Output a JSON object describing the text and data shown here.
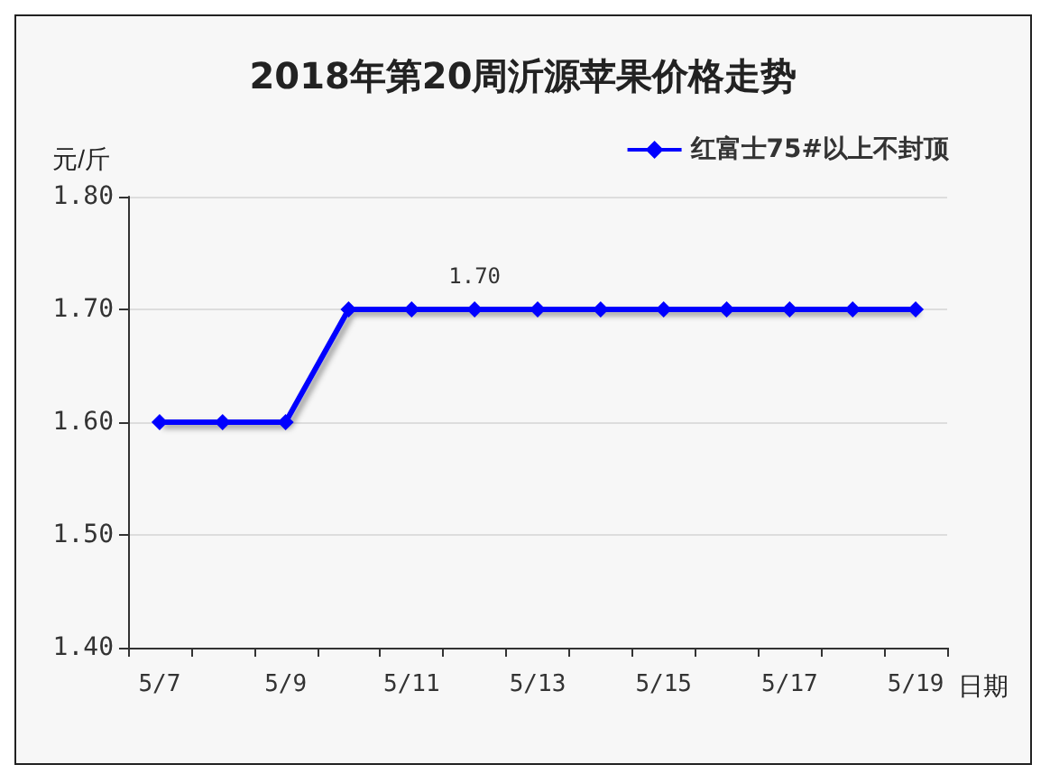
{
  "chart_data": {
    "type": "line",
    "title": "2018年第20周沂源苹果价格走势",
    "ylabel": "元/斤",
    "xlabel": "日期",
    "categories": [
      "5/7",
      null,
      "5/9",
      null,
      "5/11",
      null,
      "5/13",
      null,
      "5/15",
      null,
      "5/17",
      null,
      "5/19"
    ],
    "series": [
      {
        "name": "红富士75#以上不封顶",
        "color": "#0000ff",
        "values": [
          1.6,
          1.6,
          1.6,
          1.7,
          1.7,
          1.7,
          1.7,
          1.7,
          1.7,
          1.7,
          1.7,
          1.7,
          1.7
        ],
        "value_labels": [
          null,
          null,
          null,
          null,
          null,
          "1.70",
          null,
          null,
          null,
          null,
          null,
          null,
          null
        ]
      }
    ],
    "ylim": [
      1.4,
      1.8
    ],
    "yticks": [
      {
        "value": 1.4,
        "label": "1.40"
      },
      {
        "value": 1.5,
        "label": "1.50"
      },
      {
        "value": 1.6,
        "label": "1.60"
      },
      {
        "value": 1.7,
        "label": "1.70"
      },
      {
        "value": 1.8,
        "label": "1.80"
      }
    ],
    "grid": "y",
    "legend": "top right",
    "marker": "diamond",
    "line_style": "solid"
  }
}
